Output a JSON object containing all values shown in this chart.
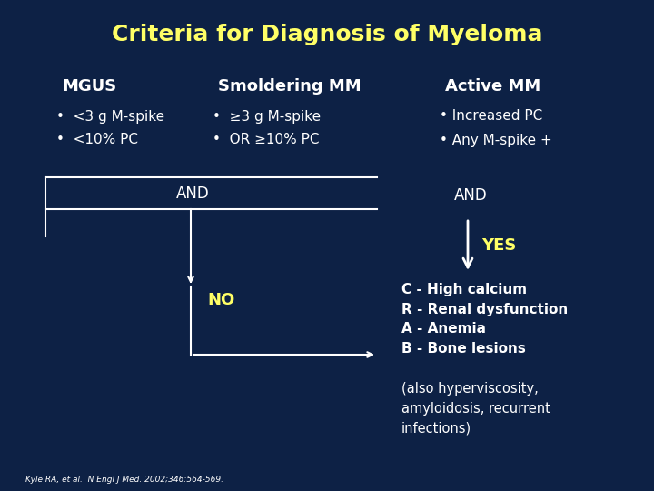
{
  "title": "Criteria for Diagnosis of Myeloma",
  "title_color": "#FFFF66",
  "background_color": "#0D2145",
  "white_text": "#FFFFFF",
  "yellow_text": "#FFFF66",
  "mgus_header": "MGUS",
  "mgus_bullets": [
    "<3 g M-spike",
    "<10% PC"
  ],
  "smoldering_header": "Smoldering MM",
  "smoldering_bullets": [
    "≥3 g M-spike",
    "OR ≥10% PC"
  ],
  "active_header": "Active MM",
  "active_bullets": [
    "Increased PC",
    "Any M-spike +"
  ],
  "and_label": "AND",
  "and_label2": "AND",
  "no_label": "NO",
  "yes_label": "YES",
  "crab_lines": [
    "C - High calcium",
    "R - Renal dysfunction",
    "A - Anemia",
    "B - Bone lesions"
  ],
  "also_text": "(also hyperviscosity,\namyloidosis, recurrent\ninfections)",
  "footnote": "Kyle RA, et al.  N Engl J Med. 2002;346:564-569."
}
